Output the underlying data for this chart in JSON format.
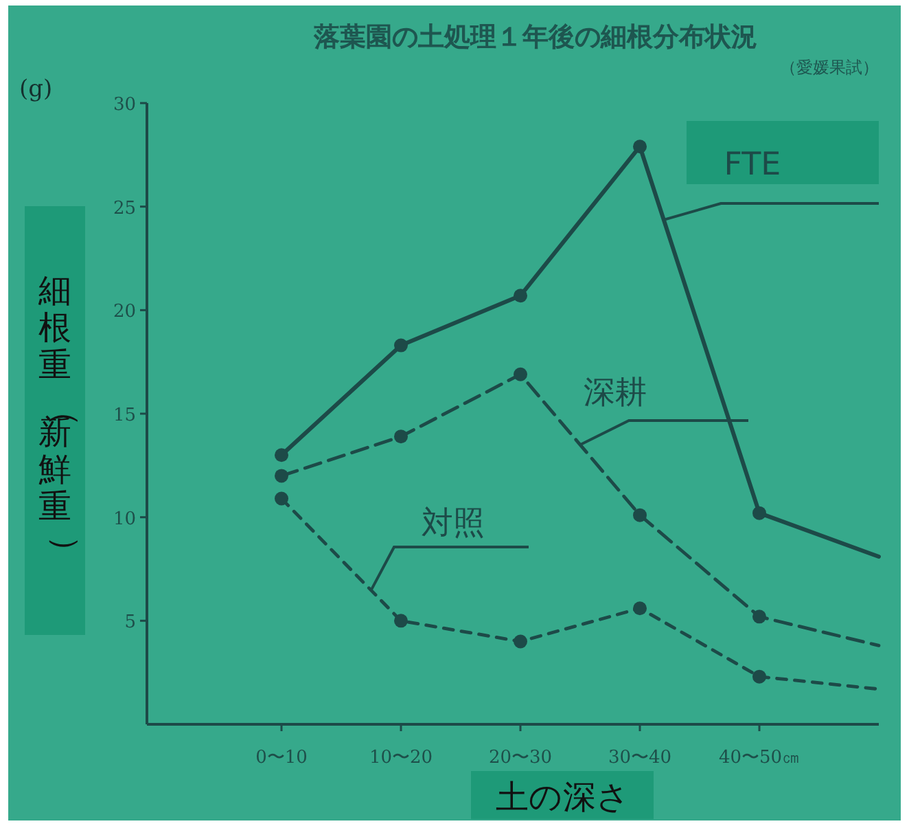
{
  "chart_data": {
    "type": "line",
    "title": "落葉園の土処理１年後の細根分布状況",
    "subtitle": "（愛媛果試）",
    "xlabel": "土の深さ",
    "ylabel": "細根重（新鮮重）",
    "annotations": [
      "(g)"
    ],
    "categories": [
      "0〜10",
      "10〜20",
      "20〜30",
      "30〜40",
      "40〜50㎝",
      null
    ],
    "ylim": [
      0,
      30
    ],
    "yticks": [
      5,
      10,
      15,
      20,
      25,
      30
    ],
    "grid": false,
    "legend": false,
    "marker": "circle",
    "series": [
      {
        "name": "FTE",
        "color": "#1d4a48",
        "line_style": "solid",
        "values": [
          13.0,
          18.3,
          20.7,
          27.9,
          10.2,
          8.1
        ]
      },
      {
        "name": "深耕",
        "color": "#1d4a48",
        "line_style": "dashed",
        "values": [
          12.0,
          13.9,
          16.9,
          10.1,
          5.2,
          3.8
        ]
      },
      {
        "name": "対照",
        "color": "#1d4a48",
        "line_style": "dashed",
        "values": [
          10.9,
          5.0,
          4.0,
          5.6,
          2.3,
          1.7
        ]
      }
    ]
  }
}
